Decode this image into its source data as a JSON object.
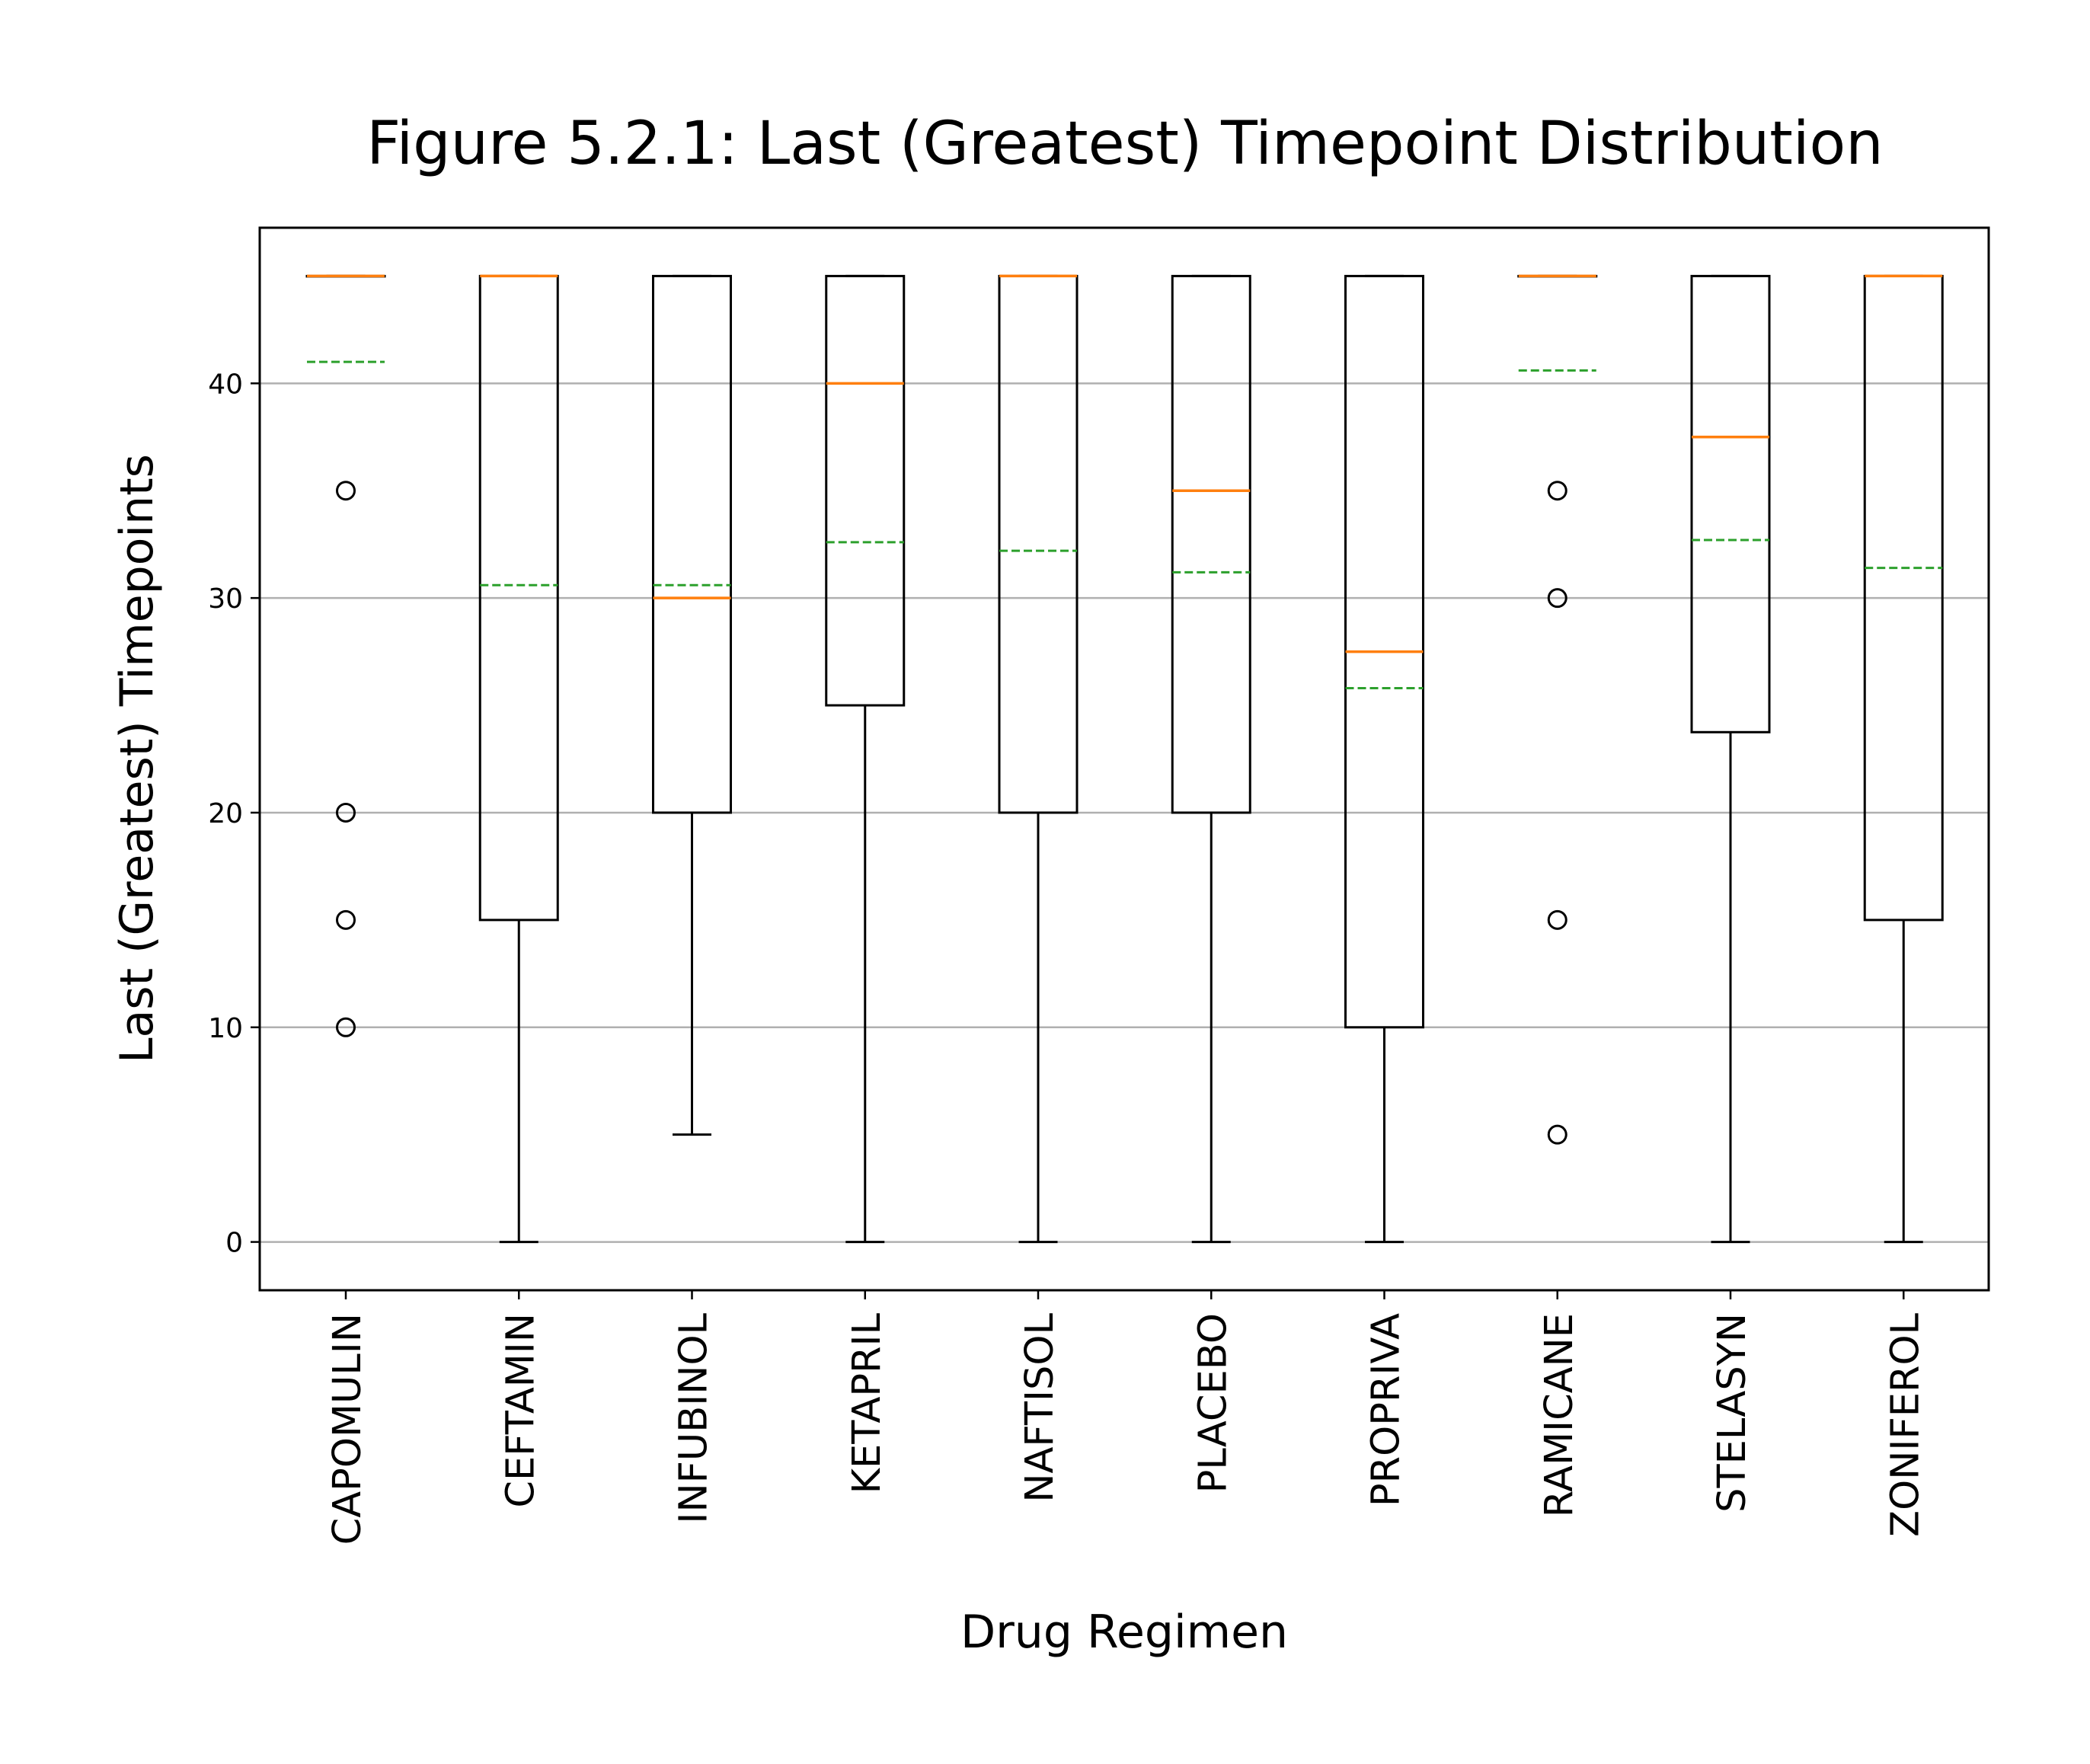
{
  "chart_data": {
    "type": "box",
    "title": "Figure 5.2.1: Last (Greatest) Timepoint Distribution",
    "xlabel": "Drug Regimen",
    "ylabel": "Last (Greatest) Timepoints",
    "ylim": [
      -2.25,
      47.25
    ],
    "yticks": [
      "0",
      "10",
      "20",
      "30",
      "40"
    ],
    "grid": "y",
    "colors": {
      "median": "#ff7f0e",
      "mean": "#2ca02c",
      "box": "#000000",
      "grid": "#b0b0b0"
    },
    "categories": [
      "CAPOMULIN",
      "CEFTAMIN",
      "INFUBINOL",
      "KETAPRIL",
      "NAFTISOL",
      "PLACEBO",
      "PROPRIVA",
      "RAMICANE",
      "STELASYN",
      "ZONIFEROL"
    ],
    "boxes": [
      {
        "whisker_low": 45,
        "q1": 45,
        "median": 45,
        "q3": 45,
        "whisker_high": 45,
        "mean": 41.0,
        "outliers": [
          35,
          20,
          15,
          10
        ]
      },
      {
        "whisker_low": 0,
        "q1": 15,
        "median": 45,
        "q3": 45,
        "whisker_high": 45,
        "mean": 30.6,
        "outliers": []
      },
      {
        "whisker_low": 5,
        "q1": 20,
        "median": 30,
        "q3": 45,
        "whisker_high": 45,
        "mean": 30.6,
        "outliers": []
      },
      {
        "whisker_low": 0,
        "q1": 25,
        "median": 40,
        "q3": 45,
        "whisker_high": 45,
        "mean": 32.6,
        "outliers": []
      },
      {
        "whisker_low": 0,
        "q1": 20,
        "median": 45,
        "q3": 45,
        "whisker_high": 45,
        "mean": 32.2,
        "outliers": []
      },
      {
        "whisker_low": 0,
        "q1": 20,
        "median": 35,
        "q3": 45,
        "whisker_high": 45,
        "mean": 31.2,
        "outliers": []
      },
      {
        "whisker_low": 0,
        "q1": 10,
        "median": 27.5,
        "q3": 45,
        "whisker_high": 45,
        "mean": 25.8,
        "outliers": []
      },
      {
        "whisker_low": 45,
        "q1": 45,
        "median": 45,
        "q3": 45,
        "whisker_high": 45,
        "mean": 40.6,
        "outliers": [
          35,
          30,
          15,
          5
        ]
      },
      {
        "whisker_low": 0,
        "q1": 23.75,
        "median": 37.5,
        "q3": 45,
        "whisker_high": 45,
        "mean": 32.7,
        "outliers": []
      },
      {
        "whisker_low": 0,
        "q1": 15,
        "median": 45,
        "q3": 45,
        "whisker_high": 45,
        "mean": 31.4,
        "outliers": []
      }
    ]
  }
}
